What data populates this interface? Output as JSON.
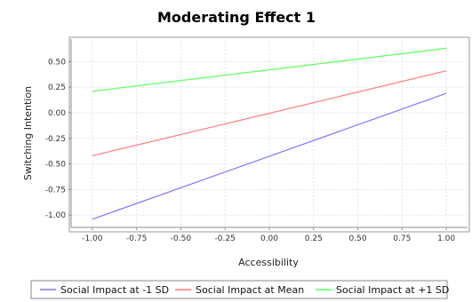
{
  "chart_data": {
    "type": "line",
    "title": "Moderating Effect 1",
    "xlabel": "Accessibility",
    "ylabel": "Switching Intention",
    "xlim": [
      -1.12,
      1.12
    ],
    "ylim": [
      -1.12,
      0.72
    ],
    "x_ticks": [
      "-1.00",
      "-0.75",
      "-0.50",
      "-0.25",
      "0.00",
      "0.25",
      "0.50",
      "0.75",
      "1.00"
    ],
    "y_ticks": [
      "0.50",
      "0.25",
      "0.00",
      "-0.25",
      "-0.50",
      "-0.75",
      "-1.00"
    ],
    "grid": true,
    "legend_position": "bottom",
    "series": [
      {
        "name": "Social Impact at -1 SD",
        "color": "#7b7bff",
        "x": [
          -1.0,
          1.0
        ],
        "y": [
          -1.04,
          0.19
        ]
      },
      {
        "name": "Social Impact at Mean",
        "color": "#ff7a7a",
        "x": [
          -1.0,
          1.0
        ],
        "y": [
          -0.42,
          0.41
        ]
      },
      {
        "name": "Social Impact at +1 SD",
        "color": "#5cff5c",
        "x": [
          -1.0,
          1.0
        ],
        "y": [
          0.21,
          0.63
        ]
      }
    ]
  }
}
